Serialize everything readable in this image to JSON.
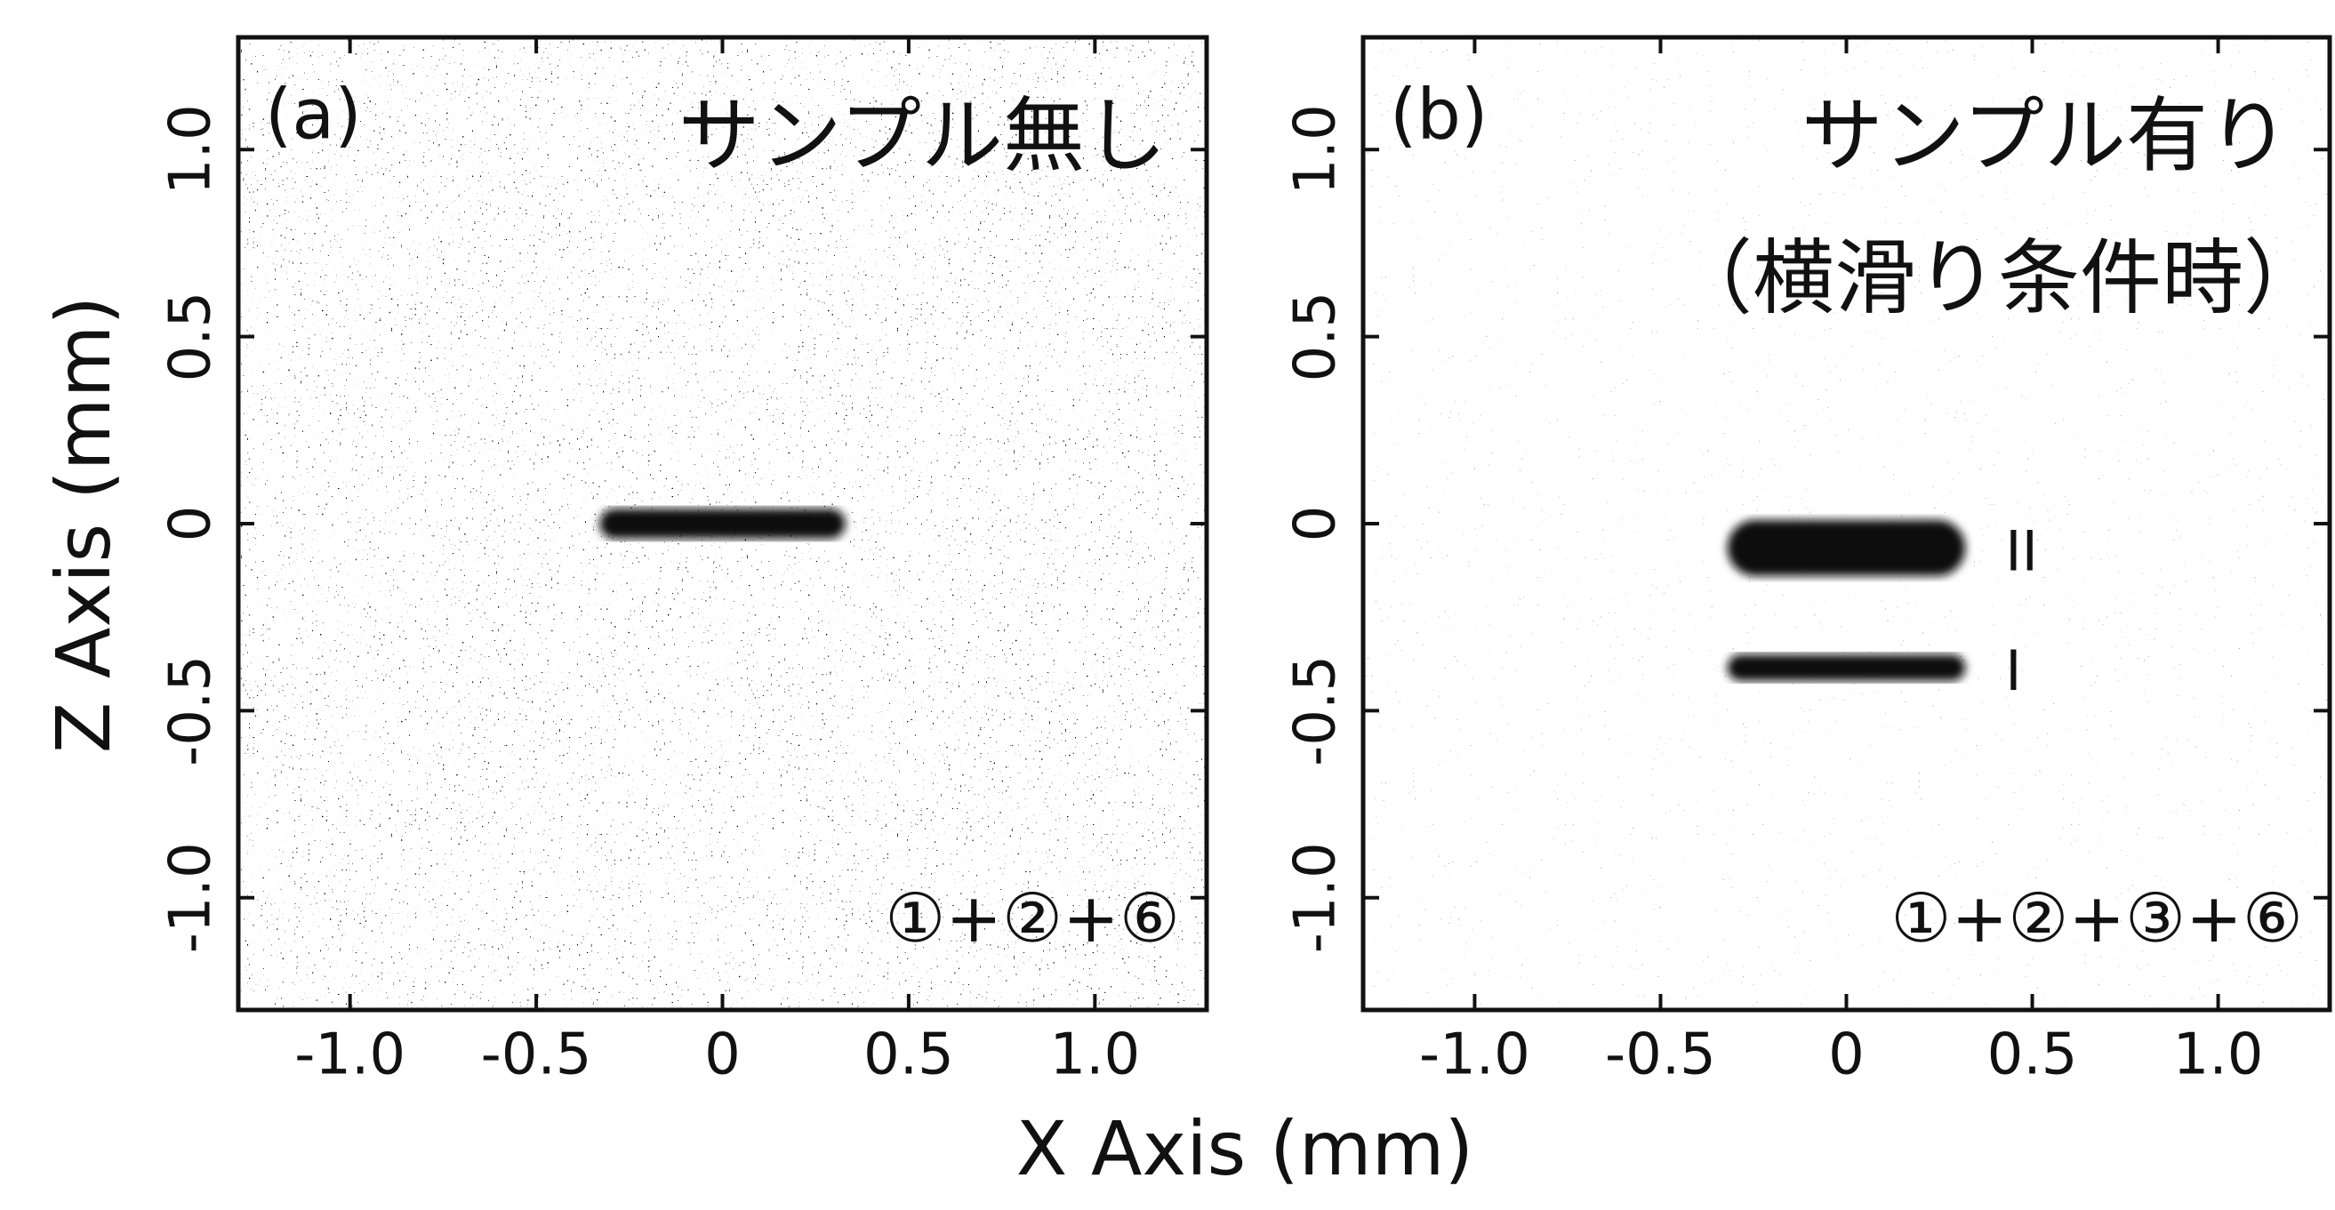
{
  "xlabel": "X Axis (mm)",
  "ylabel": "Z Axis (mm)",
  "chart_data": [
    {
      "type": "image",
      "panel_label": "(a)",
      "title": [
        "サンプル無し"
      ],
      "formula": "①+②+⑥",
      "xlim": [
        -1.3,
        1.3
      ],
      "ylim": [
        -1.3,
        1.3
      ],
      "xticks": [
        {
          "value": -1,
          "label": "-1.0"
        },
        -0.5,
        0,
        0.5,
        {
          "value": 1,
          "label": "1.0"
        }
      ],
      "yticks": [
        {
          "value": -1,
          "label": "-1.0"
        },
        -0.5,
        0,
        0.5,
        {
          "value": 1,
          "label": "1.0"
        }
      ],
      "bands": [
        {
          "x": [
            -0.33,
            0.33
          ],
          "z": [
            -0.04,
            0.04
          ]
        }
      ]
    },
    {
      "type": "image",
      "panel_label": "(b)",
      "title": [
        "サンプル有り",
        "（横滑り条件時）"
      ],
      "formula": "①+②+③+⑥",
      "xlim": [
        -1.3,
        1.3
      ],
      "ylim": [
        -1.3,
        1.3
      ],
      "xticks": [
        {
          "value": -1,
          "label": "-1.0"
        },
        -0.5,
        0,
        0.5,
        {
          "value": 1,
          "label": "1.0"
        }
      ],
      "yticks": [
        {
          "value": -1,
          "label": "-1.0"
        },
        -0.5,
        0,
        0.5,
        {
          "value": 1,
          "label": "1.0"
        }
      ],
      "bands": [
        {
          "label": "II",
          "x": [
            -0.32,
            0.32
          ],
          "z": [
            -0.14,
            0.01
          ]
        },
        {
          "label": "I",
          "x": [
            -0.32,
            0.32
          ],
          "z": [
            -0.42,
            -0.35
          ]
        }
      ]
    }
  ]
}
